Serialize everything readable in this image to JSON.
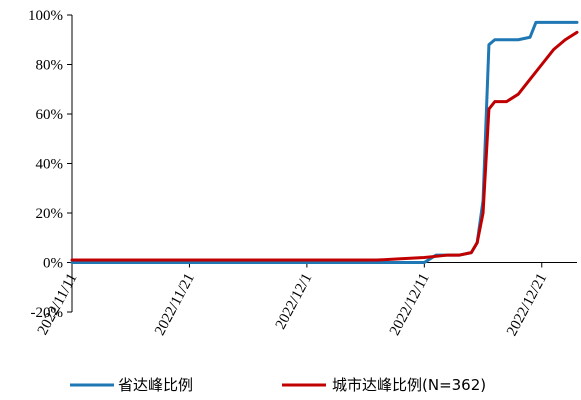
{
  "chart_data": {
    "type": "line",
    "x_type": "date",
    "y_unit": "%",
    "ylim": [
      -20,
      100
    ],
    "y_ticks": [
      -20,
      0,
      20,
      40,
      60,
      80,
      100
    ],
    "y_tick_labels": [
      "-20%",
      "0%",
      "20%",
      "40%",
      "60%",
      "80%",
      "100%"
    ],
    "xlim": [
      "2022-11-11",
      "2022-12-24"
    ],
    "x_ticks": [
      "2022-11-11",
      "2022-11-21",
      "2022-12-01",
      "2022-12-11",
      "2022-12-21"
    ],
    "x_tick_labels": [
      "2022/11/11",
      "2022/11/21",
      "2022/12/1",
      "2022/12/11",
      "2022/12/21"
    ],
    "grid": false,
    "legend_position": "bottom",
    "series": [
      {
        "name": "省达峰比例",
        "color": "#1f77b4",
        "points": [
          [
            "2022-11-11",
            0
          ],
          [
            "2022-12-09",
            0
          ],
          [
            "2022-12-11",
            0
          ],
          [
            "2022-12-12",
            3
          ],
          [
            "2022-12-13",
            3
          ],
          [
            "2022-12-14",
            3
          ],
          [
            "2022-12-15",
            4
          ],
          [
            "2022-12-15.5",
            8
          ],
          [
            "2022-12-16",
            25
          ],
          [
            "2022-12-16.5",
            88
          ],
          [
            "2022-12-17",
            90
          ],
          [
            "2022-12-18",
            90
          ],
          [
            "2022-12-19",
            90
          ],
          [
            "2022-12-20",
            91
          ],
          [
            "2022-12-20.5",
            97
          ],
          [
            "2022-12-21",
            97
          ],
          [
            "2022-12-24",
            97
          ]
        ]
      },
      {
        "name": "城市达峰比例(N=362)",
        "color": "#c00000",
        "points": [
          [
            "2022-11-11",
            1
          ],
          [
            "2022-12-07",
            1
          ],
          [
            "2022-12-09",
            1.5
          ],
          [
            "2022-12-11",
            2
          ],
          [
            "2022-12-12",
            2.5
          ],
          [
            "2022-12-13",
            3
          ],
          [
            "2022-12-14",
            3
          ],
          [
            "2022-12-15",
            4
          ],
          [
            "2022-12-15.5",
            8
          ],
          [
            "2022-12-16",
            20
          ],
          [
            "2022-12-16.5",
            62
          ],
          [
            "2022-12-17",
            65
          ],
          [
            "2022-12-18",
            65
          ],
          [
            "2022-12-19",
            68
          ],
          [
            "2022-12-20",
            74
          ],
          [
            "2022-12-21",
            80
          ],
          [
            "2022-12-22",
            86
          ],
          [
            "2022-12-23",
            90
          ],
          [
            "2022-12-24",
            93
          ]
        ]
      }
    ]
  }
}
